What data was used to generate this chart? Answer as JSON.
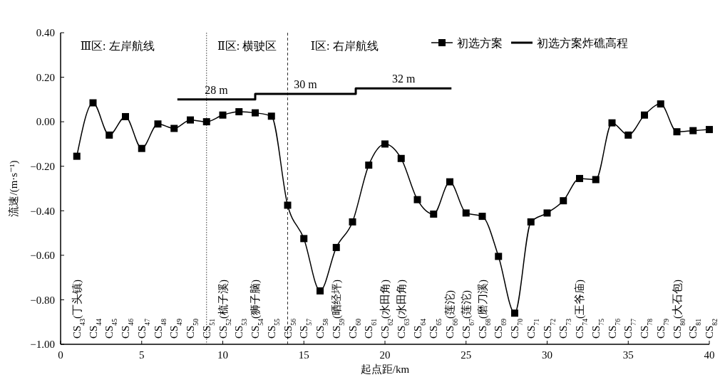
{
  "chart_data": {
    "type": "line",
    "xlabel": "起点距/km",
    "ylabel": "流速/(m·s⁻¹)",
    "xlim": [
      0,
      40
    ],
    "xticks": [
      0,
      5,
      10,
      15,
      20,
      25,
      30,
      35,
      40
    ],
    "ylim": [
      -1,
      0.4
    ],
    "yticks": [
      {
        "value": 0.4,
        "label": "0.40"
      },
      {
        "value": 0.2,
        "label": "0.20"
      },
      {
        "value": 0,
        "label": "0.00"
      },
      {
        "value": -0.2,
        "label": "−0.20"
      },
      {
        "value": -0.4,
        "label": "−0.40"
      },
      {
        "value": -0.6,
        "label": "−0.60"
      },
      {
        "value": -0.8,
        "label": "−0.80"
      },
      {
        "value": -1,
        "label": "−1.00"
      }
    ],
    "grid": false,
    "legend": "top right",
    "series": [
      {
        "name": "初选方案",
        "type": "line",
        "color": "#000000",
        "marker": "square",
        "x": [
          1,
          2,
          3,
          4,
          5,
          6,
          7,
          8,
          9,
          10,
          11,
          12,
          13,
          14,
          15,
          16,
          17,
          18,
          19,
          20,
          21,
          22,
          23,
          24,
          25,
          26,
          27,
          28,
          29,
          30,
          31,
          32,
          33,
          34,
          35,
          36,
          37,
          38,
          39,
          40
        ],
        "values": [
          -0.155,
          0.085,
          -0.06,
          0.023,
          -0.12,
          -0.01,
          -0.03,
          0.008,
          0,
          0.03,
          0.045,
          0.04,
          0.025,
          -0.375,
          -0.525,
          -0.76,
          -0.565,
          -0.45,
          -0.195,
          -0.1,
          -0.165,
          -0.35,
          -0.415,
          -0.27,
          -0.41,
          -0.425,
          -0.605,
          -0.86,
          -0.45,
          -0.41,
          -0.355,
          -0.255,
          -0.26,
          -0.005,
          -0.06,
          0.03,
          0.08,
          -0.045,
          -0.04,
          -0.035
        ]
      },
      {
        "name": "初选方案炸礁高程",
        "type": "step",
        "color": "#000000",
        "marker": "none",
        "x": [
          7.2,
          12,
          18.2,
          24.1
        ],
        "values": [
          0.1,
          0.125,
          0.15,
          0.15
        ]
      }
    ],
    "ref_lines": [
      {
        "axis": "x",
        "value": 9,
        "line_style": "dotted"
      },
      {
        "axis": "x",
        "value": 14,
        "line_style": "dashed"
      }
    ],
    "annotations": [
      "Ⅲ区: 左岸航线",
      "Ⅱ区: 横驶区",
      "Ⅰ区: 右岸航线",
      "28 m",
      "30 m",
      "32 m",
      "CS$_{43}$(丁头镇)",
      "CS$_{44}$",
      "CS$_{45}$",
      "CS$_{46}$",
      "CS$_{47}$",
      "CS$_{48}$",
      "CS$_{49}$",
      "CS$_{50}$",
      "CS$_{51}$",
      "CS$_{52}$(梳子溪)",
      "CS$_{53}$",
      "CS$_{54}$(狮子脑)",
      "CS$_{55}$",
      "CS$_{56}$",
      "CS$_{57}$",
      "CS$_{58}$",
      "CS$_{59}$(晒经坪)",
      "CS$_{60}$",
      "CS$_{61}$",
      "CS$_{62}$(水田角)",
      "CS$_{63}$(水田角)",
      "CS$_{64}$",
      "CS$_{65}$",
      "CS$_{66}$(莲沱)",
      "CS$_{67}$(莲沱)",
      "CS$_{68}$(磨刀溪)",
      "CS$_{69}$",
      "CS$_{70}$",
      "CS$_{71}$",
      "CS$_{72}$",
      "CS$_{73}$",
      "CS$_{74}$(王爷庙)",
      "CS$_{75}$",
      "CS$_{76}$",
      "CS$_{77}$",
      "CS$_{78}$",
      "CS$_{79}$",
      "CS$_{80}$(大石包)",
      "CS$_{81}$",
      "CS$_{82}$"
    ]
  }
}
